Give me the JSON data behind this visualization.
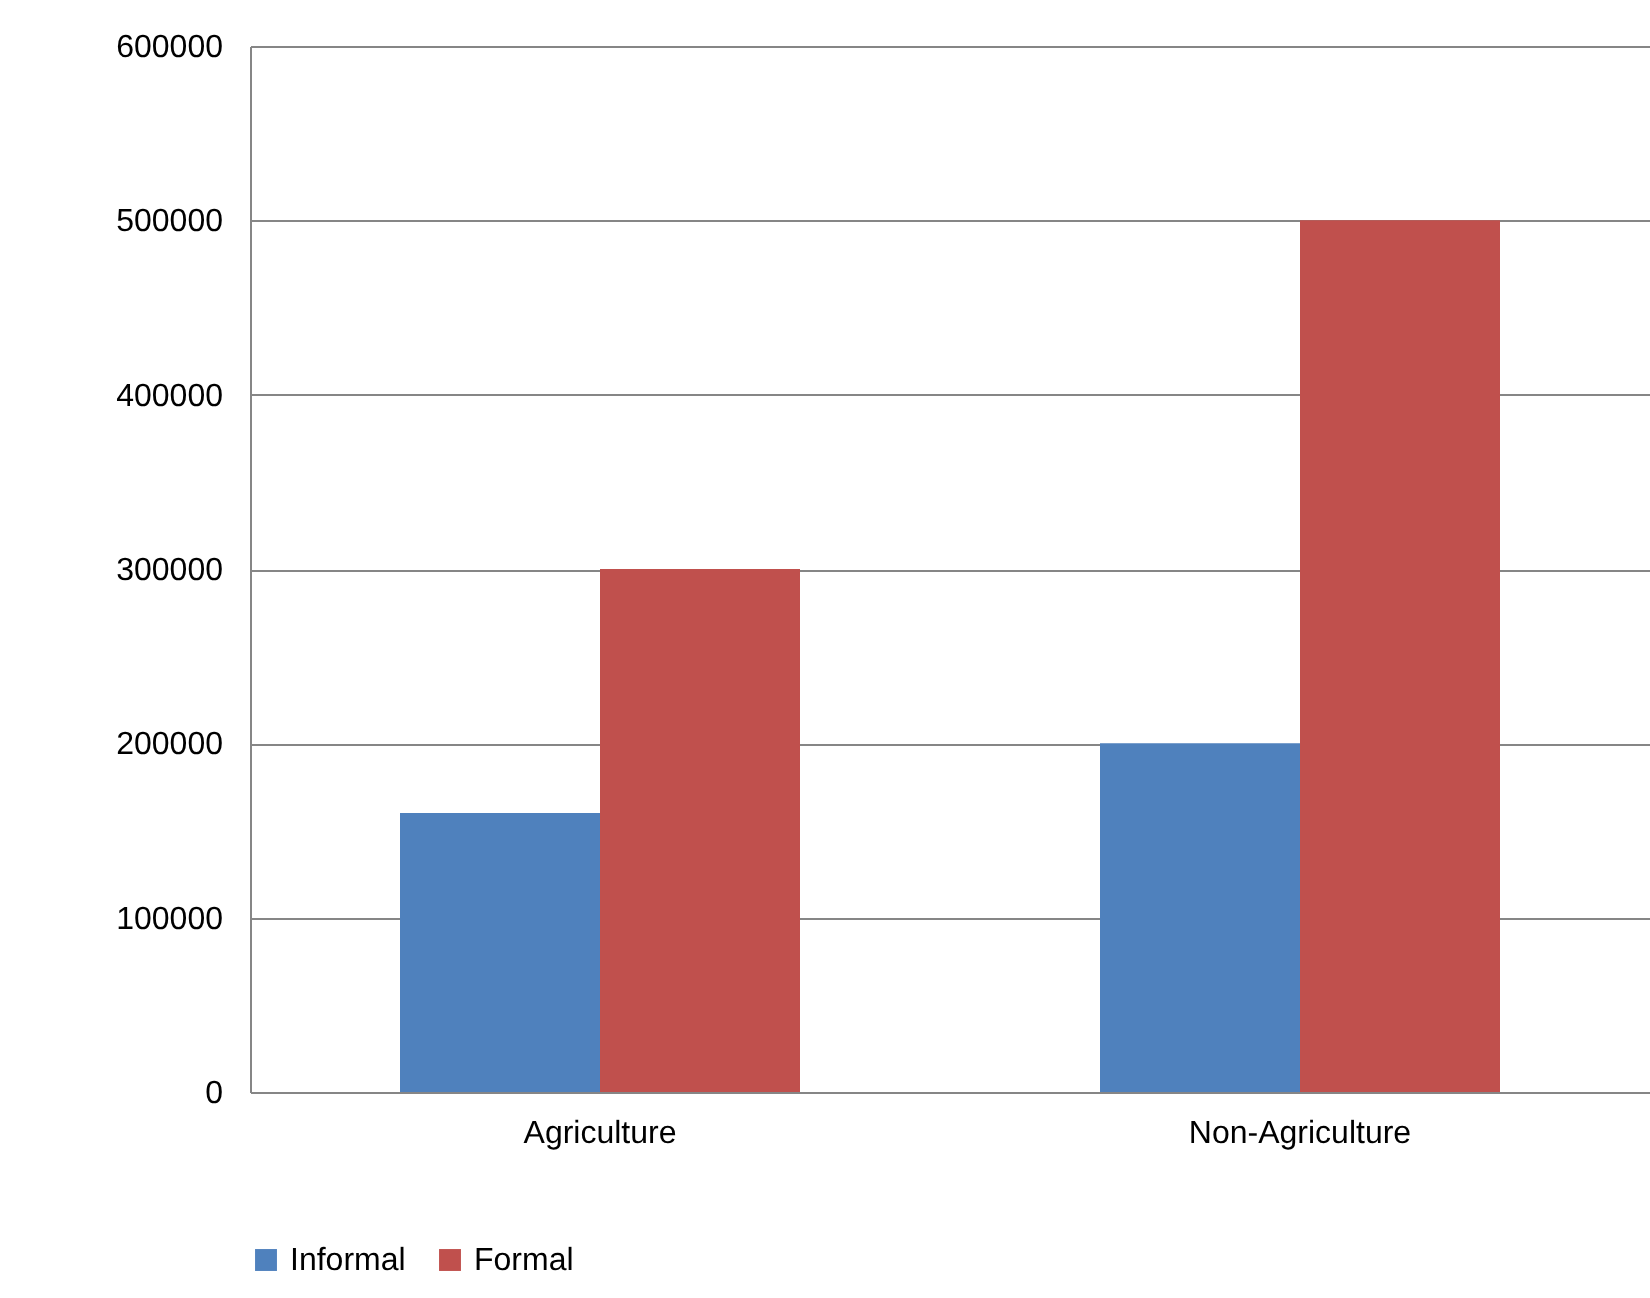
{
  "chart_data": {
    "type": "bar",
    "categories": [
      "Agriculture",
      "Non-Agriculture"
    ],
    "series": [
      {
        "name": "Informal",
        "color": "#4f81bd",
        "values": [
          160000,
          200000
        ]
      },
      {
        "name": "Formal",
        "color": "#c0504d",
        "values": [
          300000,
          500000
        ]
      }
    ],
    "ylim": [
      0,
      600000
    ],
    "yticks": [
      0,
      100000,
      200000,
      300000,
      400000,
      500000,
      600000
    ],
    "grid": "y",
    "legend": "bottom"
  }
}
